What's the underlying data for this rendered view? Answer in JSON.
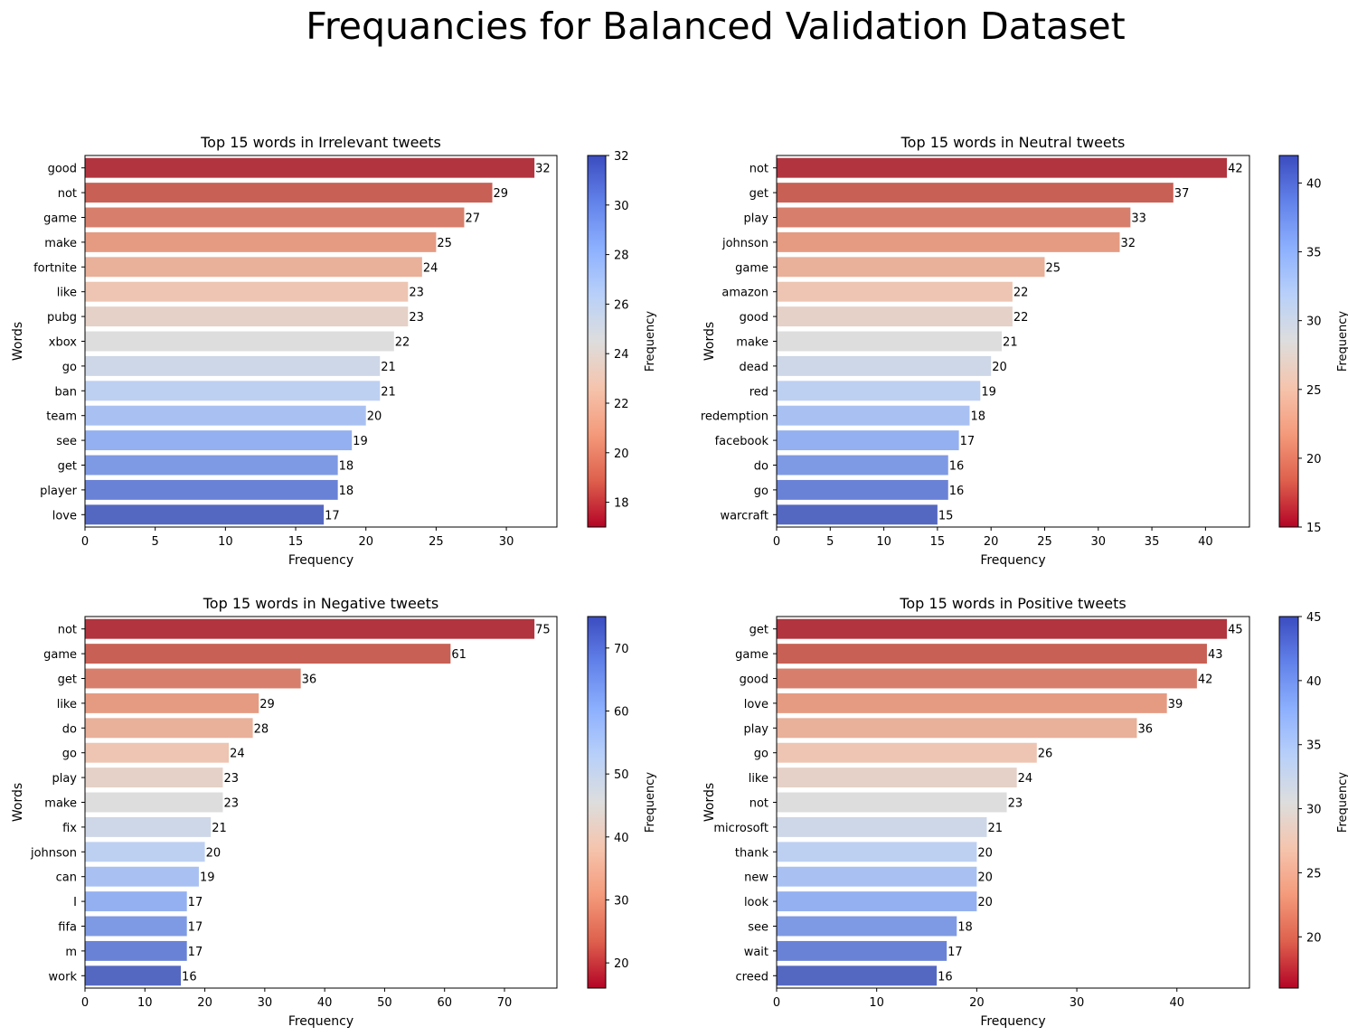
{
  "figure_title": "Frequancies for Balanced Validation Dataset",
  "palette": {
    "coolwarm_low": "#3b4cc0",
    "coolwarm_mid": "#dddddd",
    "coolwarm_high": "#b40426",
    "axis_color": "#000000",
    "background": "#ffffff"
  },
  "chart_data": [
    {
      "type": "bar",
      "orientation": "horizontal",
      "title": "Top 15 words in Irrelevant tweets",
      "xlabel": "Frequency",
      "ylabel": "Words",
      "categories": [
        "good",
        "not",
        "game",
        "make",
        "fortnite",
        "like",
        "pubg",
        "xbox",
        "go",
        "ban",
        "team",
        "see",
        "get",
        "player",
        "love"
      ],
      "values": [
        32,
        29,
        27,
        25,
        24,
        23,
        23,
        22,
        21,
        21,
        20,
        19,
        18,
        18,
        17
      ],
      "xlim": [
        0,
        33.6
      ],
      "xticks": [
        0,
        5,
        10,
        15,
        20,
        25,
        30
      ],
      "colorbar": {
        "label": "Frequency",
        "range": [
          17,
          32
        ],
        "ticks": [
          18,
          20,
          22,
          24,
          26,
          28,
          30,
          32
        ]
      },
      "grid": false,
      "data_labels": true
    },
    {
      "type": "bar",
      "orientation": "horizontal",
      "title": "Top 15 words in Neutral tweets",
      "xlabel": "Frequency",
      "ylabel": "Words",
      "categories": [
        "not",
        "get",
        "play",
        "johnson",
        "game",
        "amazon",
        "good",
        "make",
        "dead",
        "red",
        "redemption",
        "facebook",
        "do",
        "go",
        "warcraft"
      ],
      "values": [
        42,
        37,
        33,
        32,
        25,
        22,
        22,
        21,
        20,
        19,
        18,
        17,
        16,
        16,
        15
      ],
      "xlim": [
        0,
        44.1
      ],
      "xticks": [
        0,
        5,
        10,
        15,
        20,
        25,
        30,
        35,
        40
      ],
      "colorbar": {
        "label": "Frequency",
        "range": [
          15,
          42
        ],
        "ticks": [
          15,
          20,
          25,
          30,
          35,
          40
        ]
      },
      "grid": false,
      "data_labels": true
    },
    {
      "type": "bar",
      "orientation": "horizontal",
      "title": "Top 15 words in Negative tweets",
      "xlabel": "Frequency",
      "ylabel": "Words",
      "categories": [
        "not",
        "game",
        "get",
        "like",
        "do",
        "go",
        "play",
        "make",
        "fix",
        "johnson",
        "can",
        "I",
        "fifa",
        "m",
        "work"
      ],
      "values": [
        75,
        61,
        36,
        29,
        28,
        24,
        23,
        23,
        21,
        20,
        19,
        17,
        17,
        17,
        16
      ],
      "xlim": [
        0,
        78.75
      ],
      "xticks": [
        0,
        10,
        20,
        30,
        40,
        50,
        60,
        70
      ],
      "colorbar": {
        "label": "Frequency",
        "range": [
          16,
          75
        ],
        "ticks": [
          20,
          30,
          40,
          50,
          60,
          70
        ]
      },
      "grid": false,
      "data_labels": true
    },
    {
      "type": "bar",
      "orientation": "horizontal",
      "title": "Top 15 words in Positive tweets",
      "xlabel": "Frequency",
      "ylabel": "Words",
      "categories": [
        "get",
        "game",
        "good",
        "love",
        "play",
        "go",
        "like",
        "not",
        "microsoft",
        "thank",
        "new",
        "look",
        "see",
        "wait",
        "creed"
      ],
      "values": [
        45,
        43,
        42,
        39,
        36,
        26,
        24,
        23,
        21,
        20,
        20,
        20,
        18,
        17,
        16
      ],
      "xlim": [
        0,
        47.25
      ],
      "xticks": [
        0,
        10,
        20,
        30,
        40
      ],
      "colorbar": {
        "label": "Frequency",
        "range": [
          16,
          45
        ],
        "ticks": [
          20,
          25,
          30,
          35,
          40,
          45
        ]
      },
      "grid": false,
      "data_labels": true
    }
  ]
}
